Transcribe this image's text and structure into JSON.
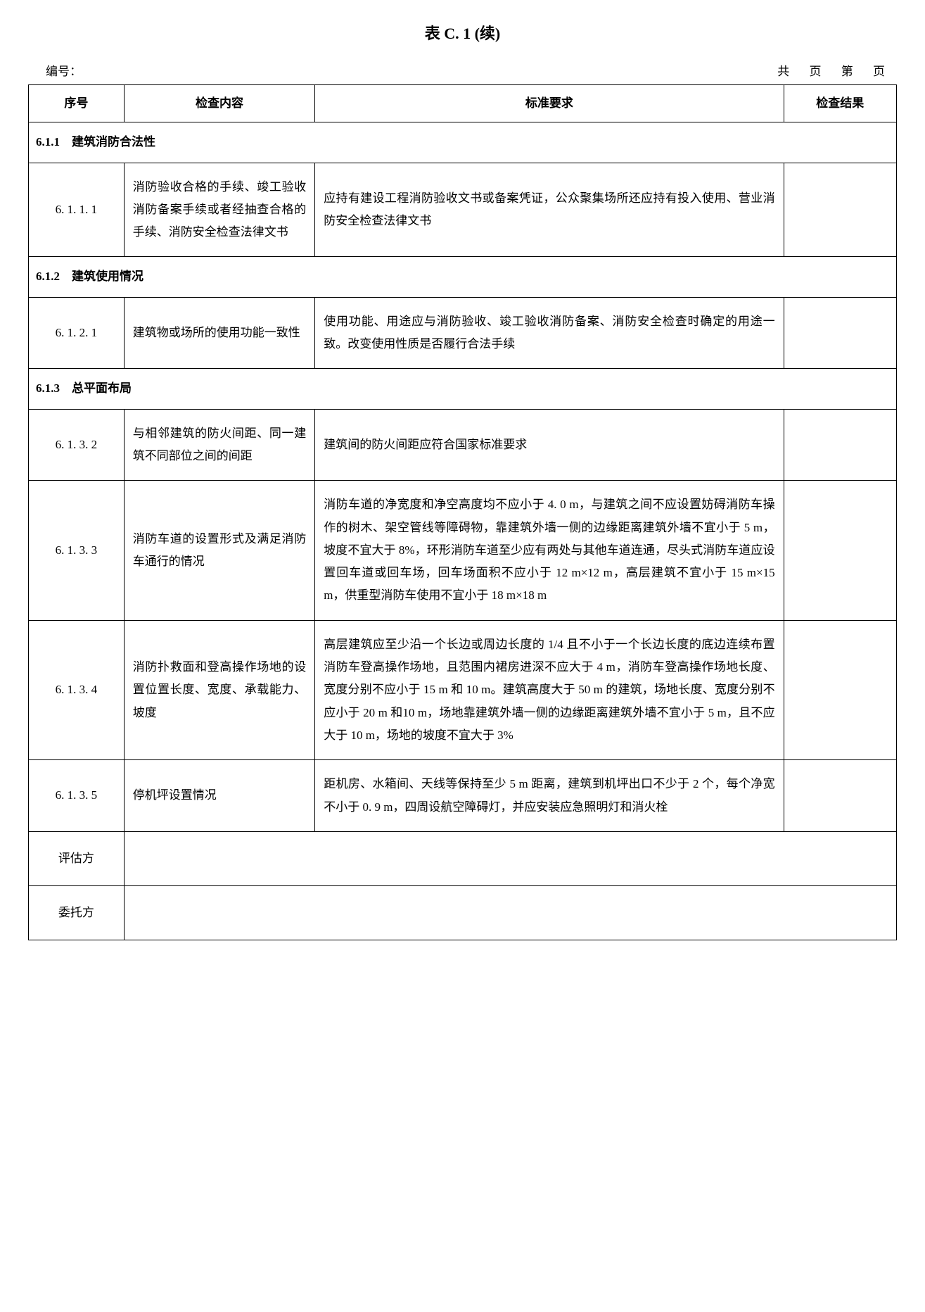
{
  "title": "表 C. 1 (续)",
  "header": {
    "numbering_label": "编号：",
    "page_info": "共 页 第 页"
  },
  "columns": {
    "seq": "序号",
    "content": "检查内容",
    "standard": "标准要求",
    "result": "检查结果"
  },
  "sections": [
    {
      "header": "6.1.1　建筑消防合法性",
      "rows": [
        {
          "seq": "6. 1. 1. 1",
          "content": "消防验收合格的手续、竣工验收消防备案手续或者经抽查合格的手续、消防安全检查法律文书",
          "standard": "应持有建设工程消防验收文书或备案凭证，公众聚集场所还应持有投入使用、营业消防安全检查法律文书",
          "result": ""
        }
      ]
    },
    {
      "header": "6.1.2　建筑使用情况",
      "rows": [
        {
          "seq": "6. 1. 2. 1",
          "content": "建筑物或场所的使用功能一致性",
          "standard": "使用功能、用途应与消防验收、竣工验收消防备案、消防安全检查时确定的用途一致。改变使用性质是否履行合法手续",
          "result": ""
        }
      ]
    },
    {
      "header": "6.1.3　总平面布局",
      "rows": [
        {
          "seq": "6. 1. 3. 2",
          "content": "与相邻建筑的防火间距、同一建筑不同部位之间的间距",
          "standard": "建筑间的防火间距应符合国家标准要求",
          "result": ""
        },
        {
          "seq": "6. 1. 3. 3",
          "content": "消防车道的设置形式及满足消防车通行的情况",
          "standard": "消防车道的净宽度和净空高度均不应小于 4. 0 m，与建筑之间不应设置妨碍消防车操作的树木、架空管线等障碍物，靠建筑外墙一侧的边缘距离建筑外墙不宜小于 5 m，坡度不宜大于 8%，环形消防车道至少应有两处与其他车道连通，尽头式消防车道应设置回车道或回车场，回车场面积不应小于 12 m×12 m，高层建筑不宜小于 15 m×15 m，供重型消防车使用不宜小于 18 m×18 m",
          "result": ""
        },
        {
          "seq": "6. 1. 3. 4",
          "content": "消防扑救面和登高操作场地的设置位置长度、宽度、承载能力、坡度",
          "standard": "高层建筑应至少沿一个长边或周边长度的 1/4 且不小于一个长边长度的底边连续布置消防车登高操作场地，且范围内裙房进深不应大于 4 m，消防车登高操作场地长度、宽度分别不应小于 15 m 和 10 m。建筑高度大于 50 m 的建筑，场地长度、宽度分别不应小于 20 m 和10 m，场地靠建筑外墙一侧的边缘距离建筑外墙不宜小于 5 m，且不应大于 10 m，场地的坡度不宜大于 3%",
          "result": ""
        },
        {
          "seq": "6. 1. 3. 5",
          "content": "停机坪设置情况",
          "standard": "距机房、水箱间、天线等保持至少 5 m 距离，建筑到机坪出口不少于 2 个，每个净宽不小于 0. 9 m，四周设航空障碍灯，并应安装应急照明灯和消火栓",
          "result": ""
        }
      ]
    }
  ],
  "footer": {
    "evaluator": "评估方",
    "client": "委托方"
  }
}
